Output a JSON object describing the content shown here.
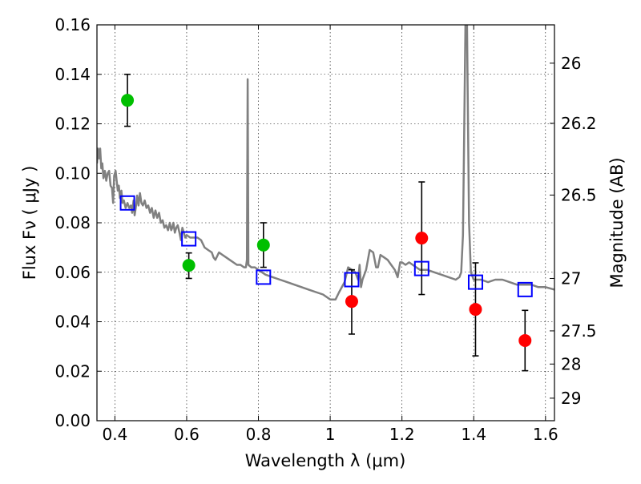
{
  "chart_data": {
    "type": "scatter",
    "xlabel": "Wavelength  λ (μm)",
    "ylabel": "Flux  Fν  ( μJy )",
    "y2label": "Magnitude (AB)",
    "xlim": [
      0.35,
      1.625
    ],
    "ylim": [
      0.0,
      0.16
    ],
    "grid": true,
    "x_ticks": [
      0.4,
      0.6,
      0.8,
      1.0,
      1.2,
      1.4,
      1.6
    ],
    "x_tick_labels": [
      "0.4",
      "0.6",
      "0.8",
      "1",
      "1.2",
      "1.4",
      "1.6"
    ],
    "y_ticks": [
      0.0,
      0.02,
      0.04,
      0.06,
      0.08,
      0.1,
      0.12,
      0.14,
      0.16
    ],
    "y_tick_labels": [
      "0.00",
      "0.02",
      "0.04",
      "0.06",
      "0.08",
      "0.10",
      "0.12",
      "0.14",
      "0.16"
    ],
    "y2_ticks": [
      {
        "label": "26",
        "flux": 0.1445
      },
      {
        "label": "26.2",
        "flux": 0.1202
      },
      {
        "label": "26.5",
        "flux": 0.0912
      },
      {
        "label": "27",
        "flux": 0.0575
      },
      {
        "label": "27.5",
        "flux": 0.0363
      },
      {
        "label": "28",
        "flux": 0.0229
      },
      {
        "label": "29",
        "flux": 0.0091
      }
    ],
    "colors": {
      "green": "#00bf00",
      "red": "#ff0000",
      "model": "#808080",
      "square": "#0000ff",
      "errorbar": "#000000"
    },
    "series": [
      {
        "marker": "circle",
        "color": "#00bf00",
        "points": [
          {
            "x": 0.435,
            "y": 0.1295,
            "yerr_low": 0.119,
            "yerr_high": 0.14
          },
          {
            "x": 0.606,
            "y": 0.0628,
            "yerr_low": 0.0575,
            "yerr_high": 0.0678
          },
          {
            "x": 0.814,
            "y": 0.071,
            "yerr_low": 0.062,
            "yerr_high": 0.08
          }
        ]
      },
      {
        "marker": "circle",
        "color": "#ff0000",
        "points": [
          {
            "x": 1.06,
            "y": 0.0482,
            "yerr_low": 0.035,
            "yerr_high": 0.061
          },
          {
            "x": 1.255,
            "y": 0.0738,
            "yerr_low": 0.051,
            "yerr_high": 0.0965
          },
          {
            "x": 1.405,
            "y": 0.045,
            "yerr_low": 0.0262,
            "yerr_high": 0.0638
          },
          {
            "x": 1.543,
            "y": 0.0324,
            "yerr_low": 0.0202,
            "yerr_high": 0.0446
          }
        ]
      },
      {
        "marker": "open-square",
        "color": "#0000ff",
        "points": [
          {
            "x": 0.435,
            "y": 0.088
          },
          {
            "x": 0.606,
            "y": 0.0735
          },
          {
            "x": 0.814,
            "y": 0.058
          },
          {
            "x": 1.06,
            "y": 0.057
          },
          {
            "x": 1.255,
            "y": 0.0615
          },
          {
            "x": 1.405,
            "y": 0.056
          },
          {
            "x": 1.543,
            "y": 0.053
          }
        ]
      },
      {
        "marker": "line",
        "color": "#808080",
        "points": [
          [
            0.35,
            0.104
          ],
          [
            0.353,
            0.11
          ],
          [
            0.356,
            0.106
          ],
          [
            0.359,
            0.11
          ],
          [
            0.362,
            0.102
          ],
          [
            0.365,
            0.104
          ],
          [
            0.368,
            0.098
          ],
          [
            0.372,
            0.101
          ],
          [
            0.376,
            0.097
          ],
          [
            0.38,
            0.1
          ],
          [
            0.384,
            0.101
          ],
          [
            0.388,
            0.095
          ],
          [
            0.392,
            0.094
          ],
          [
            0.395,
            0.088
          ],
          [
            0.398,
            0.099
          ],
          [
            0.402,
            0.101
          ],
          [
            0.405,
            0.097
          ],
          [
            0.408,
            0.093
          ],
          [
            0.411,
            0.095
          ],
          [
            0.414,
            0.09
          ],
          [
            0.418,
            0.093
          ],
          [
            0.421,
            0.088
          ],
          [
            0.425,
            0.089
          ],
          [
            0.43,
            0.086
          ],
          [
            0.435,
            0.088
          ],
          [
            0.44,
            0.086
          ],
          [
            0.445,
            0.087
          ],
          [
            0.448,
            0.084
          ],
          [
            0.452,
            0.089
          ],
          [
            0.455,
            0.083
          ],
          [
            0.458,
            0.086
          ],
          [
            0.462,
            0.091
          ],
          [
            0.466,
            0.087
          ],
          [
            0.47,
            0.092
          ],
          [
            0.474,
            0.088
          ],
          [
            0.478,
            0.087
          ],
          [
            0.483,
            0.089
          ],
          [
            0.488,
            0.086
          ],
          [
            0.493,
            0.087
          ],
          [
            0.498,
            0.084
          ],
          [
            0.503,
            0.086
          ],
          [
            0.508,
            0.082
          ],
          [
            0.513,
            0.085
          ],
          [
            0.518,
            0.082
          ],
          [
            0.523,
            0.084
          ],
          [
            0.528,
            0.08
          ],
          [
            0.533,
            0.081
          ],
          [
            0.538,
            0.078
          ],
          [
            0.543,
            0.079
          ],
          [
            0.548,
            0.077
          ],
          [
            0.553,
            0.08
          ],
          [
            0.557,
            0.077
          ],
          [
            0.56,
            0.078
          ],
          [
            0.563,
            0.08
          ],
          [
            0.567,
            0.076
          ],
          [
            0.571,
            0.078
          ],
          [
            0.575,
            0.079
          ],
          [
            0.58,
            0.076
          ],
          [
            0.584,
            0.073
          ],
          [
            0.588,
            0.078
          ],
          [
            0.592,
            0.076
          ],
          [
            0.596,
            0.074
          ],
          [
            0.6,
            0.075
          ],
          [
            0.61,
            0.074
          ],
          [
            0.62,
            0.074
          ],
          [
            0.63,
            0.074
          ],
          [
            0.64,
            0.073
          ],
          [
            0.65,
            0.07
          ],
          [
            0.66,
            0.069
          ],
          [
            0.67,
            0.068
          ],
          [
            0.675,
            0.066
          ],
          [
            0.68,
            0.065
          ],
          [
            0.69,
            0.068
          ],
          [
            0.7,
            0.067
          ],
          [
            0.71,
            0.066
          ],
          [
            0.72,
            0.065
          ],
          [
            0.73,
            0.064
          ],
          [
            0.74,
            0.063
          ],
          [
            0.75,
            0.063
          ],
          [
            0.76,
            0.062
          ],
          [
            0.765,
            0.062
          ],
          [
            0.768,
            0.065
          ],
          [
            0.77,
            0.138
          ],
          [
            0.772,
            0.063
          ],
          [
            0.78,
            0.062
          ],
          [
            0.79,
            0.062
          ],
          [
            0.8,
            0.061
          ],
          [
            0.81,
            0.06
          ],
          [
            0.82,
            0.059
          ],
          [
            0.84,
            0.058
          ],
          [
            0.86,
            0.057
          ],
          [
            0.88,
            0.056
          ],
          [
            0.9,
            0.055
          ],
          [
            0.92,
            0.054
          ],
          [
            0.94,
            0.053
          ],
          [
            0.96,
            0.052
          ],
          [
            0.98,
            0.051
          ],
          [
            1.0,
            0.049
          ],
          [
            1.015,
            0.049
          ],
          [
            1.025,
            0.052
          ],
          [
            1.04,
            0.056
          ],
          [
            1.05,
            0.062
          ],
          [
            1.06,
            0.061
          ],
          [
            1.07,
            0.06
          ],
          [
            1.078,
            0.057
          ],
          [
            1.082,
            0.063
          ],
          [
            1.086,
            0.054
          ],
          [
            1.09,
            0.057
          ],
          [
            1.1,
            0.061
          ],
          [
            1.11,
            0.069
          ],
          [
            1.12,
            0.068
          ],
          [
            1.128,
            0.062
          ],
          [
            1.133,
            0.062
          ],
          [
            1.14,
            0.067
          ],
          [
            1.15,
            0.066
          ],
          [
            1.16,
            0.065
          ],
          [
            1.17,
            0.063
          ],
          [
            1.18,
            0.061
          ],
          [
            1.188,
            0.058
          ],
          [
            1.195,
            0.064
          ],
          [
            1.2,
            0.064
          ],
          [
            1.21,
            0.063
          ],
          [
            1.22,
            0.064
          ],
          [
            1.23,
            0.063
          ],
          [
            1.24,
            0.062
          ],
          [
            1.25,
            0.061
          ],
          [
            1.26,
            0.061
          ],
          [
            1.27,
            0.061
          ],
          [
            1.29,
            0.06
          ],
          [
            1.31,
            0.059
          ],
          [
            1.33,
            0.058
          ],
          [
            1.35,
            0.057
          ],
          [
            1.36,
            0.058
          ],
          [
            1.365,
            0.06
          ],
          [
            1.37,
            0.075
          ],
          [
            1.373,
            0.11
          ],
          [
            1.377,
            0.16
          ],
          [
            1.381,
            0.165
          ],
          [
            1.384,
            0.12
          ],
          [
            1.387,
            0.08
          ],
          [
            1.392,
            0.06
          ],
          [
            1.4,
            0.057
          ],
          [
            1.42,
            0.057
          ],
          [
            1.44,
            0.056
          ],
          [
            1.46,
            0.057
          ],
          [
            1.48,
            0.057
          ],
          [
            1.5,
            0.056
          ],
          [
            1.52,
            0.055
          ],
          [
            1.54,
            0.055
          ],
          [
            1.56,
            0.055
          ],
          [
            1.58,
            0.054
          ],
          [
            1.6,
            0.054
          ],
          [
            1.625,
            0.053
          ]
        ]
      }
    ]
  }
}
